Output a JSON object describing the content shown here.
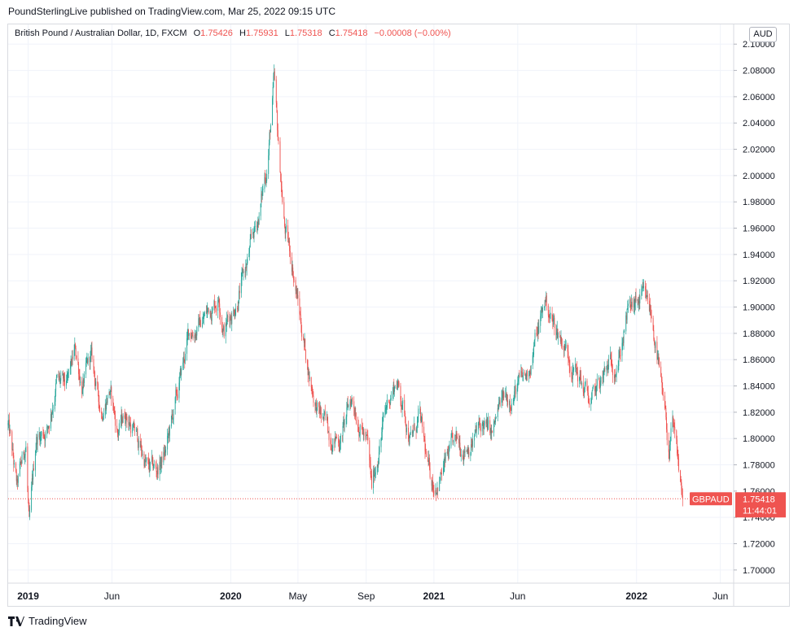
{
  "publisher_line": "PoundSterlingLive published on TradingView.com, Mar 25, 2022 09:15 UTC",
  "legend": {
    "title": "British Pound / Australian Dollar, 1D, FXCM",
    "open_label": "O",
    "open": "1.75426",
    "high_label": "H",
    "high": "1.75931",
    "low_label": "L",
    "low": "1.75318",
    "close_label": "C",
    "close": "1.75418",
    "change": "−0.00008 (−0.00%)"
  },
  "currency_button": "AUD",
  "price_tag": {
    "symbol": "GBPAUD",
    "price": "1.75418",
    "countdown": "11:44:01"
  },
  "brand": "TradingView",
  "colors": {
    "up": "#26a69a",
    "down": "#ef5350",
    "grid": "#f0f3fa",
    "axis_text": "#131722"
  },
  "chart_data": {
    "type": "candlestick",
    "symbol": "GBPAUD",
    "interval": "1D",
    "y_tick_labels": [
      "1.70000",
      "1.72000",
      "1.74000",
      "1.76000",
      "1.78000",
      "1.80000",
      "1.82000",
      "1.84000",
      "1.86000",
      "1.88000",
      "1.90000",
      "1.92000",
      "1.94000",
      "1.96000",
      "1.98000",
      "2.00000",
      "2.02000",
      "2.04000",
      "2.06000",
      "2.08000",
      "2.10000"
    ],
    "ylim": [
      1.69,
      2.115
    ],
    "xlim": [
      "2018-11-26",
      "2022-06-25"
    ],
    "x_ticks": [
      {
        "label": "2019",
        "date": "2019-01-01",
        "bold": true
      },
      {
        "label": "Jun",
        "date": "2019-06-01",
        "bold": false
      },
      {
        "label": "2020",
        "date": "2020-01-01",
        "bold": true
      },
      {
        "label": "May",
        "date": "2020-05-01",
        "bold": false
      },
      {
        "label": "Sep",
        "date": "2020-09-01",
        "bold": false
      },
      {
        "label": "2021",
        "date": "2021-01-01",
        "bold": true
      },
      {
        "label": "Jun",
        "date": "2021-06-01",
        "bold": false
      },
      {
        "label": "2022",
        "date": "2022-01-01",
        "bold": true
      },
      {
        "label": "Jun",
        "date": "2022-06-01",
        "bold": false
      }
    ],
    "last_price": 1.75418,
    "price_path": [
      [
        "2018-11-26",
        1.81
      ],
      [
        "2018-12-12",
        1.76
      ],
      [
        "2018-12-28",
        1.795
      ],
      [
        "2019-01-03",
        1.73
      ],
      [
        "2019-01-16",
        1.8
      ],
      [
        "2019-02-06",
        1.81
      ],
      [
        "2019-02-21",
        1.845
      ],
      [
        "2019-03-11",
        1.835
      ],
      [
        "2019-03-27",
        1.865
      ],
      [
        "2019-04-09",
        1.84
      ],
      [
        "2019-04-24",
        1.86
      ],
      [
        "2019-05-12",
        1.82
      ],
      [
        "2019-05-27",
        1.84
      ],
      [
        "2019-06-11",
        1.805
      ],
      [
        "2019-06-26",
        1.82
      ],
      [
        "2019-07-16",
        1.8
      ],
      [
        "2019-08-06",
        1.775
      ],
      [
        "2019-08-21",
        1.775
      ],
      [
        "2019-09-06",
        1.79
      ],
      [
        "2019-09-26",
        1.83
      ],
      [
        "2019-10-18",
        1.88
      ],
      [
        "2019-11-11",
        1.89
      ],
      [
        "2019-12-11",
        1.91
      ],
      [
        "2019-12-20",
        1.885
      ],
      [
        "2020-01-06",
        1.9
      ],
      [
        "2020-01-26",
        1.925
      ],
      [
        "2020-02-21",
        1.97
      ],
      [
        "2020-03-07",
        2.01
      ],
      [
        "2020-03-19",
        2.07
      ],
      [
        "2020-03-25",
        2.03
      ],
      [
        "2020-04-07",
        1.96
      ],
      [
        "2020-04-22",
        1.93
      ],
      [
        "2020-05-06",
        1.89
      ],
      [
        "2020-05-21",
        1.85
      ],
      [
        "2020-06-06",
        1.82
      ],
      [
        "2020-06-26",
        1.805
      ],
      [
        "2020-07-16",
        1.8
      ],
      [
        "2020-08-06",
        1.83
      ],
      [
        "2020-08-21",
        1.815
      ],
      [
        "2020-09-03",
        1.795
      ],
      [
        "2020-09-11",
        1.76
      ],
      [
        "2020-09-26",
        1.8
      ],
      [
        "2020-10-11",
        1.83
      ],
      [
        "2020-10-26",
        1.845
      ],
      [
        "2020-11-06",
        1.825
      ],
      [
        "2020-11-21",
        1.8
      ],
      [
        "2020-12-06",
        1.815
      ],
      [
        "2020-12-21",
        1.775
      ],
      [
        "2020-12-31",
        1.765
      ],
      [
        "2021-01-16",
        1.775
      ],
      [
        "2021-02-01",
        1.79
      ],
      [
        "2021-02-21",
        1.795
      ],
      [
        "2021-03-11",
        1.8
      ],
      [
        "2021-03-31",
        1.81
      ],
      [
        "2021-04-16",
        1.8
      ],
      [
        "2021-05-01",
        1.825
      ],
      [
        "2021-05-21",
        1.835
      ],
      [
        "2021-06-16",
        1.845
      ],
      [
        "2021-07-06",
        1.88
      ],
      [
        "2021-07-21",
        1.905
      ],
      [
        "2021-08-06",
        1.885
      ],
      [
        "2021-08-21",
        1.875
      ],
      [
        "2021-09-06",
        1.86
      ],
      [
        "2021-09-26",
        1.84
      ],
      [
        "2021-10-11",
        1.825
      ],
      [
        "2021-10-26",
        1.84
      ],
      [
        "2021-11-16",
        1.855
      ],
      [
        "2021-12-01",
        1.865
      ],
      [
        "2021-12-16",
        1.895
      ],
      [
        "2022-01-01",
        1.9
      ],
      [
        "2022-01-11",
        1.905
      ],
      [
        "2022-01-26",
        1.895
      ],
      [
        "2022-02-06",
        1.87
      ],
      [
        "2022-02-16",
        1.83
      ],
      [
        "2022-03-01",
        1.79
      ],
      [
        "2022-03-06",
        1.81
      ],
      [
        "2022-03-16",
        1.78
      ],
      [
        "2022-03-25",
        1.75418
      ]
    ]
  }
}
